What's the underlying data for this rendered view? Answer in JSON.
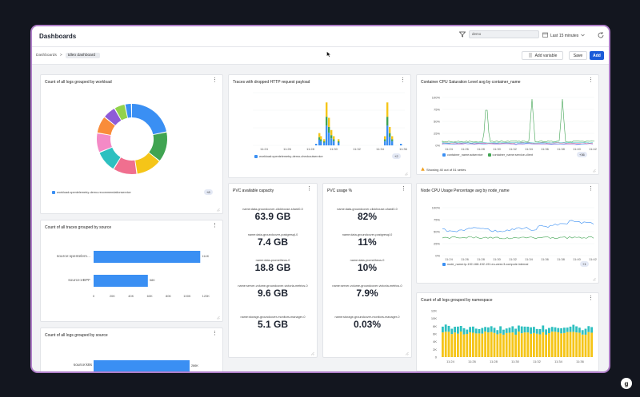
{
  "header": {
    "title": "Dashboards",
    "filter_value": "demo",
    "time_range": "Last 15 minutes"
  },
  "toolbar": {
    "breadcrumb_root": "Dashboards",
    "breadcrumb_sep": ">",
    "breadcrumb_current": "tdleo dashboard",
    "add_variable": "Add variable",
    "save": "Save",
    "add": "Add"
  },
  "colors": {
    "accent": "#1a5bd8",
    "bar_blue": "#3a8ff3",
    "frame": "#b07fc9"
  },
  "panels": {
    "logs_by_workload": {
      "title": "Count of all logs grouped by workload",
      "legend": "workload:opentelemetry-demo-recommendationservice",
      "more": "+8"
    },
    "traces_dropped": {
      "title": "Traces with dropped HTTP request payload",
      "legend": "workload:opentelemetry-demo-checkoutservice",
      "more": "+2"
    },
    "cpu_saturation": {
      "title": "Container CPU Saturation Level avg by container_name",
      "legend1": "container_name:adservice",
      "legend2": "container_name:service-client",
      "more": "+36",
      "warning": "Showing 40 out of 51 series"
    },
    "traces_by_source": {
      "title": "Count of all traces grouped by source"
    },
    "pvc_capacity": {
      "title": "PVC available capacity",
      "stats": [
        {
          "label": "name:data-groundcover-clickhouse-shard0-0",
          "value": "63.9 GB"
        },
        {
          "label": "name:data-groundcover-postgresql-0",
          "value": "7.4 GB"
        },
        {
          "label": "name:data-prometheus-0",
          "value": "18.8 GB"
        },
        {
          "label": "name:server-volume-groundcover-victoria-metrics-0",
          "value": "9.6 GB"
        },
        {
          "label": "name:storage-groundcover-monitors-manager-0",
          "value": "5.1 GB"
        }
      ]
    },
    "pvc_usage": {
      "title": "PVC usage %",
      "stats": [
        {
          "label": "name:data-groundcover-clickhouse-shard0-0",
          "value": "82%"
        },
        {
          "label": "name:data-groundcover-postgresql-0",
          "value": "11%"
        },
        {
          "label": "name:data-prometheus-0",
          "value": "10%"
        },
        {
          "label": "name:server-volume-groundcover-victoria-metrics-0",
          "value": "7.9%"
        },
        {
          "label": "name:storage-groundcover-monitors-manager-0",
          "value": "0.03%"
        }
      ]
    },
    "node_cpu": {
      "title": "Node CPU Usage Percentage avg by node_name",
      "legend": "node_name:ip-192-168-152-191.eu-west-3.compute.internal",
      "more": "+1"
    },
    "logs_by_source": {
      "title": "Count of all logs grouped by source",
      "bar_label": "source:k8s",
      "bar_value": "286K"
    },
    "logs_by_namespace": {
      "title": "Count of all logs grouped by namespace"
    }
  },
  "chart_data": [
    {
      "type": "pie",
      "title": "Count of all logs grouped by workload",
      "values": [
        22,
        14,
        12,
        11,
        10,
        9,
        8,
        6,
        5,
        3
      ],
      "colors": [
        "#3a8ff3",
        "#40a452",
        "#f5c518",
        "#f06f8f",
        "#2ec0c0",
        "#f48ac6",
        "#f98c3a",
        "#8e5bd8",
        "#92d24c",
        "#3a8ff3"
      ]
    },
    {
      "type": "bar",
      "title": "Traces with dropped HTTP request payload",
      "x": [
        "11:24",
        "11:26",
        "11:28",
        "11:30",
        "11:32",
        "11:34",
        "11:36"
      ],
      "series_count": 4
    },
    {
      "type": "bar",
      "title": "Count of all traces grouped by source",
      "categories": [
        "source:opentelem...",
        "source:eBPF"
      ],
      "values": [
        114000,
        58000
      ],
      "value_labels": [
        "114K",
        "58K"
      ],
      "xticks": [
        "0",
        "20K",
        "40K",
        "60K",
        "80K",
        "100K",
        "120K"
      ],
      "xlim": [
        0,
        130000
      ]
    },
    {
      "type": "line",
      "title": "Node CPU Usage Percentage avg by node_name",
      "x": [
        "11:24",
        "11:26",
        "11:28",
        "11:30",
        "11:32",
        "11:34",
        "11:36",
        "11:38",
        "11:40",
        "11:42"
      ],
      "yticks": [
        "100%",
        "75%",
        "50%",
        "25%",
        "0%"
      ],
      "ylim": [
        0,
        100
      ]
    },
    {
      "type": "line",
      "title": "Container CPU Saturation Level avg by container_name",
      "x": [
        "11:24",
        "11:26",
        "11:28",
        "11:30",
        "11:32",
        "11:34",
        "11:36",
        "11:38",
        "11:40",
        "11:42"
      ],
      "yticks": [
        "100%",
        "75%",
        "50%",
        "25%",
        "0%"
      ],
      "ylim": [
        0,
        100
      ]
    },
    {
      "type": "bar",
      "title": "Count of all logs grouped by namespace",
      "x": [
        "11:24",
        "11:26",
        "11:28",
        "11:30",
        "11:32",
        "11:34",
        "11:36"
      ],
      "yticks": [
        "12K",
        "10K",
        "8K",
        "6K",
        "4K",
        "2K",
        "0"
      ],
      "ylim": [
        0,
        12000
      ]
    },
    {
      "type": "bar",
      "title": "Count of all logs grouped by source",
      "categories": [
        "source:k8s"
      ],
      "values": [
        286000
      ],
      "value_labels": [
        "286K"
      ]
    }
  ]
}
